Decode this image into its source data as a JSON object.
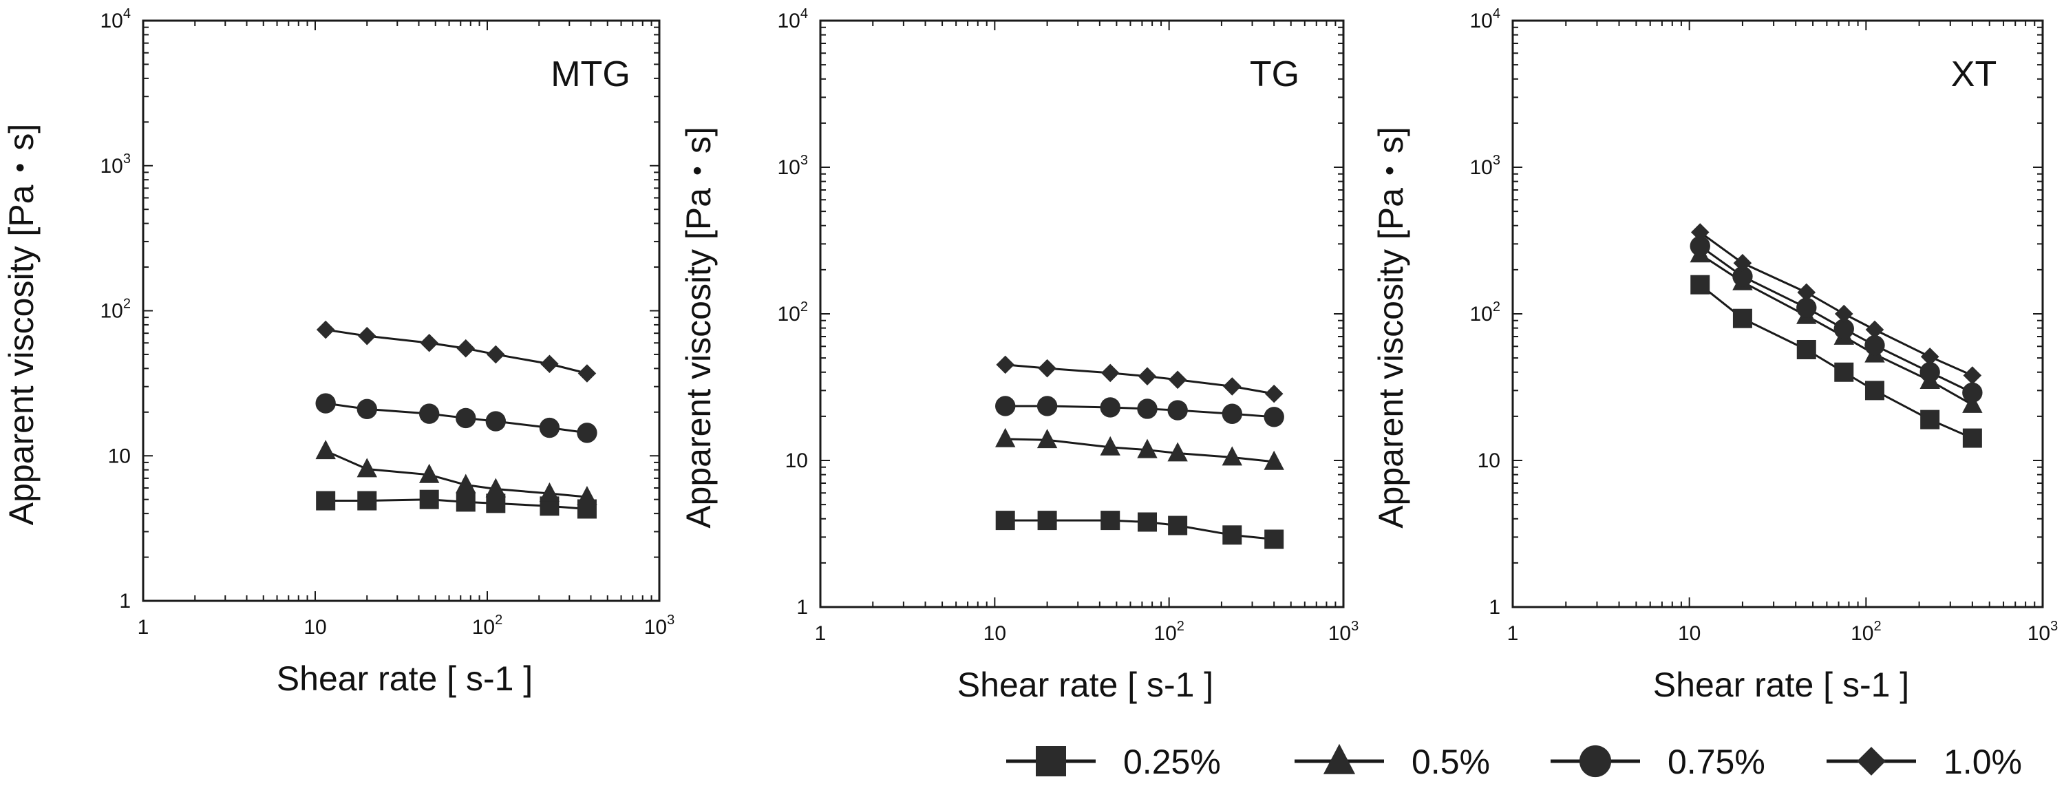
{
  "chart_data": [
    {
      "type": "line",
      "title": "MTG",
      "xlabel": "Shear rate [ s-1 ]",
      "ylabel": "Apparent viscosity [Pa・s]",
      "xscale": "log",
      "yscale": "log",
      "xlim": [
        1,
        1000
      ],
      "ylim": [
        1,
        10000
      ],
      "x_tick_labels": [
        {
          "base": "1",
          "sup": ""
        },
        {
          "base": "10",
          "sup": ""
        },
        {
          "base": "10",
          "sup": "2"
        },
        {
          "base": "10",
          "sup": "3"
        }
      ],
      "y_tick_labels": [
        {
          "base": "1",
          "sup": ""
        },
        {
          "base": "10",
          "sup": ""
        },
        {
          "base": "10",
          "sup": "2"
        },
        {
          "base": "10",
          "sup": "3"
        },
        {
          "base": "10",
          "sup": "4"
        }
      ],
      "x": [
        11.5,
        20,
        46,
        75,
        112,
        230,
        380
      ],
      "series": [
        {
          "name": "0.25%",
          "marker": "square",
          "values": [
            4.9,
            4.9,
            5.0,
            4.8,
            4.7,
            4.5,
            4.3
          ]
        },
        {
          "name": "0.5%",
          "marker": "triangle",
          "values": [
            10.8,
            8.1,
            7.4,
            6.3,
            5.9,
            5.5,
            5.2
          ]
        },
        {
          "name": "0.75%",
          "marker": "circle",
          "values": [
            23,
            21,
            19.5,
            18.2,
            17.3,
            15.6,
            14.4
          ]
        },
        {
          "name": "1.0%",
          "marker": "diamond",
          "values": [
            74,
            67,
            60,
            55,
            50,
            43,
            37
          ]
        }
      ]
    },
    {
      "type": "line",
      "title": "TG",
      "xlabel": "Shear rate [ s-1 ]",
      "ylabel": "Apparent viscosity [Pa・s]",
      "xscale": "log",
      "yscale": "log",
      "xlim": [
        1,
        1000
      ],
      "ylim": [
        1,
        10000
      ],
      "x_tick_labels": [
        {
          "base": "1",
          "sup": ""
        },
        {
          "base": "10",
          "sup": ""
        },
        {
          "base": "10",
          "sup": "2"
        },
        {
          "base": "10",
          "sup": "3"
        }
      ],
      "y_tick_labels": [
        {
          "base": "1",
          "sup": ""
        },
        {
          "base": "10",
          "sup": ""
        },
        {
          "base": "10",
          "sup": "2"
        },
        {
          "base": "10",
          "sup": "3"
        },
        {
          "base": "10",
          "sup": "4"
        }
      ],
      "x": [
        11.5,
        20,
        46,
        75,
        112,
        230,
        400
      ],
      "series": [
        {
          "name": "0.25%",
          "marker": "square",
          "values": [
            3.9,
            3.9,
            3.9,
            3.8,
            3.6,
            3.1,
            2.9
          ]
        },
        {
          "name": "0.5%",
          "marker": "triangle",
          "values": [
            14,
            13.8,
            12.3,
            11.8,
            11.2,
            10.5,
            9.8
          ]
        },
        {
          "name": "0.75%",
          "marker": "circle",
          "values": [
            23.5,
            23.5,
            23,
            22.5,
            22,
            20.8,
            19.8
          ]
        },
        {
          "name": "1.0%",
          "marker": "diamond",
          "values": [
            45,
            42.5,
            39.5,
            37.5,
            35.5,
            32,
            28.5
          ]
        }
      ]
    },
    {
      "type": "line",
      "title": "XT",
      "xlabel": "Shear rate [ s-1 ]",
      "ylabel": "Apparent viscosity [Pa・s]",
      "xscale": "log",
      "yscale": "log",
      "xlim": [
        1,
        1000
      ],
      "ylim": [
        1,
        10000
      ],
      "x_tick_labels": [
        {
          "base": "1",
          "sup": ""
        },
        {
          "base": "10",
          "sup": ""
        },
        {
          "base": "10",
          "sup": "2"
        },
        {
          "base": "10",
          "sup": "3"
        }
      ],
      "y_tick_labels": [
        {
          "base": "1",
          "sup": ""
        },
        {
          "base": "10",
          "sup": ""
        },
        {
          "base": "10",
          "sup": "2"
        },
        {
          "base": "10",
          "sup": "3"
        },
        {
          "base": "10",
          "sup": "4"
        }
      ],
      "x": [
        11.5,
        20,
        46,
        75,
        112,
        230,
        400
      ],
      "series": [
        {
          "name": "0.25%",
          "marker": "square",
          "values": [
            158,
            93,
            57,
            40,
            30,
            19,
            14.2
          ]
        },
        {
          "name": "0.5%",
          "marker": "triangle",
          "values": [
            255,
            165,
            97,
            70,
            53,
            35,
            24
          ]
        },
        {
          "name": "0.75%",
          "marker": "circle",
          "values": [
            290,
            180,
            110,
            79,
            61,
            40,
            29
          ]
        },
        {
          "name": "1.0%",
          "marker": "diamond",
          "values": [
            360,
            222,
            140,
            100,
            78,
            51,
            38
          ]
        }
      ]
    }
  ],
  "legend": {
    "items": [
      {
        "label": "0.25%",
        "marker": "square"
      },
      {
        "label": "0.5%",
        "marker": "triangle"
      },
      {
        "label": "0.75%",
        "marker": "circle"
      },
      {
        "label": "1.0%",
        "marker": "diamond"
      }
    ]
  },
  "colors": {
    "line": "#1a1a1a",
    "marker": "#2b2b2b",
    "text": "#111111"
  }
}
